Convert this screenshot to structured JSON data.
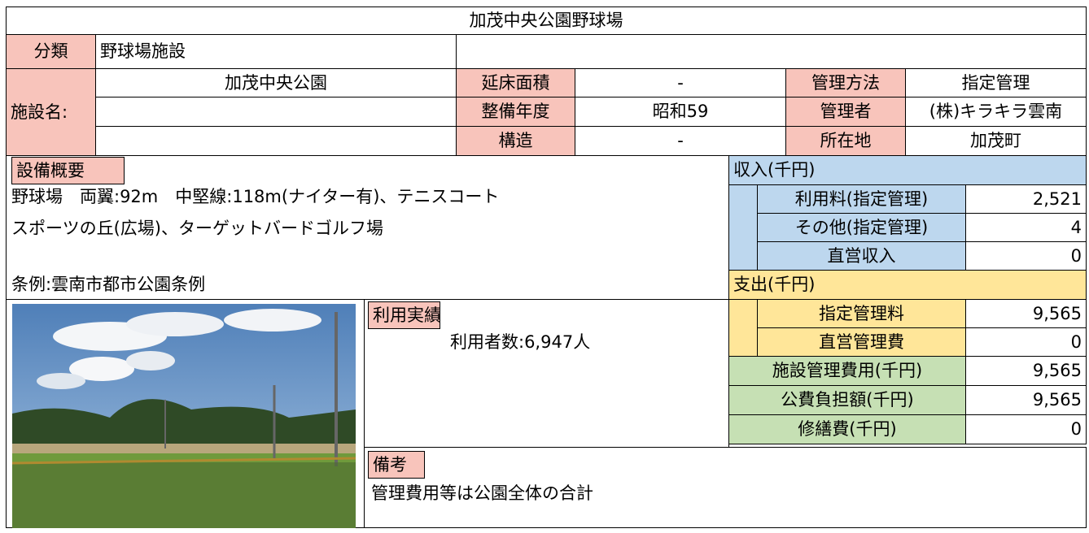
{
  "title": "加茂中央公園野球場",
  "category": {
    "label": "分類",
    "value": "野球場施設"
  },
  "facility": {
    "label": "施設名:",
    "name": "加茂中央公園"
  },
  "attributes": [
    {
      "label": "延床面積",
      "value": "-"
    },
    {
      "label": "整備年度",
      "value": "昭和59"
    },
    {
      "label": "構造",
      "value": "-"
    }
  ],
  "management": [
    {
      "label": "管理方法",
      "value": "指定管理"
    },
    {
      "label": "管理者",
      "value": "(株)キラキラ雲南"
    },
    {
      "label": "所在地",
      "value": "加茂町"
    }
  ],
  "overview": {
    "label": "設備概要",
    "lines": [
      "野球場　両翼:92m　中堅線:118m(ナイター有)、テニスコート",
      "スポーツの丘(広場)、ターゲットバードゴルフ場"
    ],
    "ordinance": "条例:雲南市都市公園条例"
  },
  "usage": {
    "label": "利用実績",
    "text": "利用者数:6,947人"
  },
  "notes": {
    "label": "備考",
    "text": "管理費用等は公園全体の合計"
  },
  "income": {
    "header": "収入(千円)",
    "items": [
      {
        "label": "利用料(指定管理)",
        "value": "2,521"
      },
      {
        "label": "その他(指定管理)",
        "value": "4"
      },
      {
        "label": "直営収入",
        "value": "0"
      }
    ]
  },
  "expense": {
    "header": "支出(千円)",
    "items": [
      {
        "label": "指定管理料",
        "value": "9,565"
      },
      {
        "label": "直営管理費",
        "value": "0"
      }
    ]
  },
  "totals": [
    {
      "label": "施設管理費用(千円)",
      "value": "9,565"
    },
    {
      "label": "公費負担額(千円)",
      "value": "9,565"
    },
    {
      "label": "修繕費(千円)",
      "value": "0"
    }
  ]
}
